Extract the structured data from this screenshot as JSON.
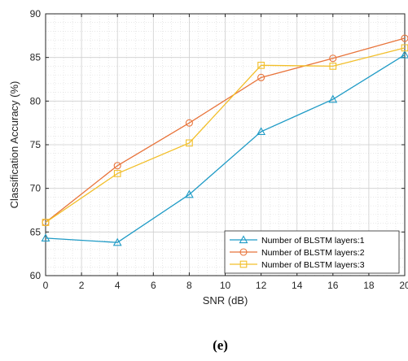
{
  "chart_data": {
    "type": "line",
    "xlabel": "SNR (dB)",
    "ylabel": "Classification Accuracy (%)",
    "xlim": [
      0,
      20
    ],
    "ylim": [
      60,
      90
    ],
    "x_ticks": [
      0,
      2,
      4,
      6,
      8,
      10,
      12,
      14,
      16,
      18,
      20
    ],
    "y_ticks": [
      60,
      65,
      70,
      75,
      80,
      85,
      90
    ],
    "grid": true,
    "minor_grid": true,
    "legend_position": "bottom-right",
    "series": [
      {
        "name": "Number of BLSTM layers:1",
        "marker": "triangle",
        "color": "#1f9bc6",
        "x": [
          0,
          4,
          8,
          12,
          16,
          20
        ],
        "y": [
          64.3,
          63.8,
          69.3,
          76.5,
          80.2,
          85.3
        ]
      },
      {
        "name": "Number of BLSTM layers:2",
        "marker": "circle",
        "color": "#e8743b",
        "x": [
          0,
          4,
          8,
          12,
          16,
          20
        ],
        "y": [
          66.1,
          72.6,
          77.5,
          82.7,
          84.9,
          87.2
        ]
      },
      {
        "name": "Number of BLSTM layers:3",
        "marker": "square",
        "color": "#f2bf2a",
        "x": [
          0,
          4,
          8,
          12,
          16,
          20
        ],
        "y": [
          66.1,
          71.7,
          75.2,
          84.1,
          84.0,
          86.1
        ]
      }
    ]
  },
  "caption": "(e)"
}
